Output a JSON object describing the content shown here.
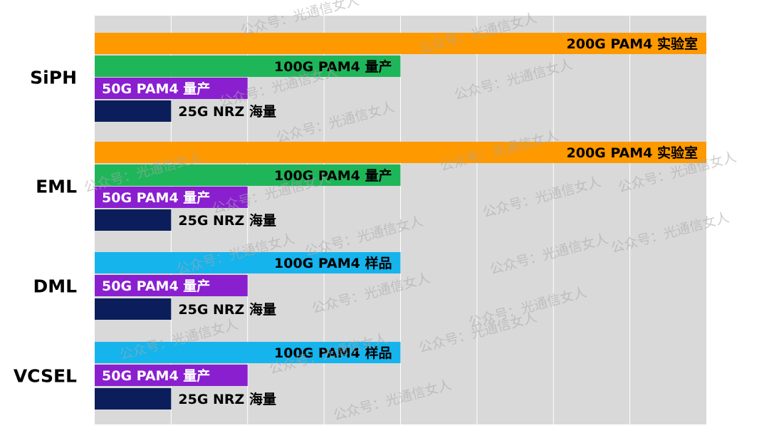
{
  "chart_data": {
    "type": "bar",
    "orientation": "horizontal",
    "grid": true,
    "grid_columns": 8,
    "groups": [
      {
        "category": "SiPH",
        "bars": [
          {
            "label": "200G PAM4 实验室",
            "value": 8.0,
            "color": "#FF9900",
            "text_color": "#000000"
          },
          {
            "label": "100G PAM4 量产",
            "value": 4.0,
            "color": "#1FB65A",
            "text_color": "#000000"
          },
          {
            "label": "50G PAM4 量产",
            "value": 2.0,
            "color": "#8A1FD0",
            "text_color": "#FFFFFF"
          },
          {
            "label": "25G NRZ 海量",
            "value": 1.0,
            "color": "#0B1E5B",
            "text_color": "#000000"
          }
        ]
      },
      {
        "category": "EML",
        "bars": [
          {
            "label": "200G PAM4 实验室",
            "value": 8.0,
            "color": "#FF9900",
            "text_color": "#000000"
          },
          {
            "label": "100G PAM4 量产",
            "value": 4.0,
            "color": "#1FB65A",
            "text_color": "#000000"
          },
          {
            "label": "50G PAM4 量产",
            "value": 2.0,
            "color": "#8A1FD0",
            "text_color": "#FFFFFF"
          },
          {
            "label": "25G NRZ 海量",
            "value": 1.0,
            "color": "#0B1E5B",
            "text_color": "#000000"
          }
        ]
      },
      {
        "category": "DML",
        "bars": [
          {
            "label": "100G PAM4 样品",
            "value": 4.0,
            "color": "#15B4EC",
            "text_color": "#000000"
          },
          {
            "label": "50G PAM4 量产",
            "value": 2.0,
            "color": "#8A1FD0",
            "text_color": "#FFFFFF"
          },
          {
            "label": "25G NRZ 海量",
            "value": 1.0,
            "color": "#0B1E5B",
            "text_color": "#000000"
          }
        ]
      },
      {
        "category": "VCSEL",
        "bars": [
          {
            "label": "100G PAM4 样品",
            "value": 4.0,
            "color": "#15B4EC",
            "text_color": "#000000"
          },
          {
            "label": "50G PAM4 量产",
            "value": 2.0,
            "color": "#8A1FD0",
            "text_color": "#FFFFFF"
          },
          {
            "label": "25G NRZ 海量",
            "value": 1.0,
            "color": "#0B1E5B",
            "text_color": "#000000"
          }
        ]
      }
    ],
    "xlim": [
      0,
      8
    ],
    "plot_background": "#D9D9D9",
    "grid_color": "#FFFFFF"
  },
  "watermark_text": "公众号：光通信女人"
}
